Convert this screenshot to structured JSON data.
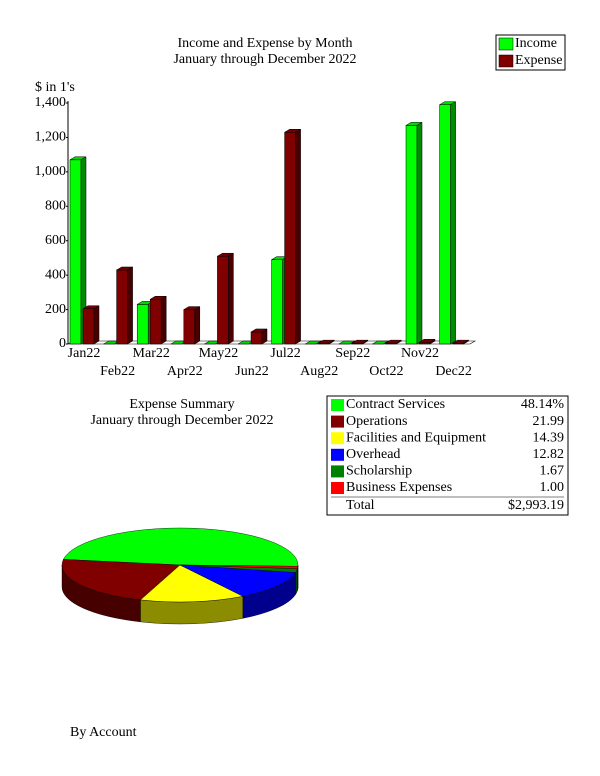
{
  "chart_data": [
    {
      "type": "bar",
      "title": "Income and Expense by Month",
      "subtitle": "January through December 2022",
      "y_axis_label": "$ in 1's",
      "categories": [
        "Jan22",
        "Feb22",
        "Mar22",
        "Apr22",
        "May22",
        "Jun22",
        "Jul22",
        "Aug22",
        "Sep22",
        "Oct22",
        "Nov22",
        "Dec22"
      ],
      "series": [
        {
          "name": "Income",
          "color": "#00ff00",
          "values": [
            1070,
            0,
            230,
            0,
            0,
            0,
            490,
            0,
            0,
            0,
            1270,
            1390
          ]
        },
        {
          "name": "Expense",
          "color": "#800000",
          "values": [
            205,
            430,
            260,
            200,
            510,
            70,
            1230,
            5,
            5,
            5,
            10,
            5
          ]
        }
      ],
      "ylim": [
        0,
        1400
      ],
      "yticks": [
        0,
        200,
        400,
        600,
        800,
        {
          "value": 1000,
          "label": "1,000"
        },
        {
          "value": 1200,
          "label": "1,200"
        },
        {
          "value": 1400,
          "label": "1,400"
        }
      ]
    },
    {
      "type": "pie",
      "title": "Expense Summary",
      "subtitle": "January through December 2022",
      "categories": [
        "Contract Services",
        "Operations",
        "Facilities and Equipment",
        "Overhead",
        "Scholarship",
        "Business Expenses"
      ],
      "values": [
        48.14,
        21.99,
        14.39,
        12.82,
        1.67,
        1.0
      ],
      "value_labels": [
        "48.14%",
        "21.99",
        "14.39",
        "12.82",
        "1.67",
        "1.00"
      ],
      "colors": [
        "#00ff00",
        "#800000",
        "#ffff00",
        "#0000ff",
        "#008000",
        "#ff0000"
      ],
      "total": {
        "label": "Total",
        "value": 2993.19,
        "value_label": "$2,993.19"
      }
    }
  ],
  "footer": "By Account"
}
